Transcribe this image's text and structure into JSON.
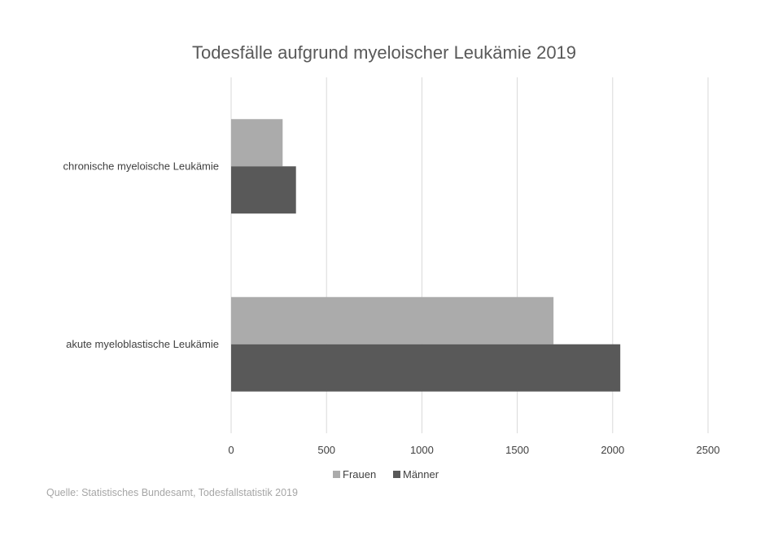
{
  "chart_data": {
    "type": "bar",
    "orientation": "horizontal",
    "title": "Todesfälle aufgrund myeloischer Leukämie 2019",
    "categories": [
      "chronische myeloische Leukämie",
      "akute myeloblastische Leukämie"
    ],
    "series": [
      {
        "name": "Frauen",
        "values": [
          270,
          1690
        ],
        "color": "#ababab"
      },
      {
        "name": "Männer",
        "values": [
          340,
          2040
        ],
        "color": "#595959"
      }
    ],
    "xlim": [
      0,
      2500
    ],
    "xticks": [
      0,
      500,
      1000,
      1500,
      2000,
      2500
    ],
    "grid": "vertical",
    "legend_position": "bottom"
  },
  "source": "Quelle: Statistisches Bundesamt, Todesfallstatistik 2019"
}
